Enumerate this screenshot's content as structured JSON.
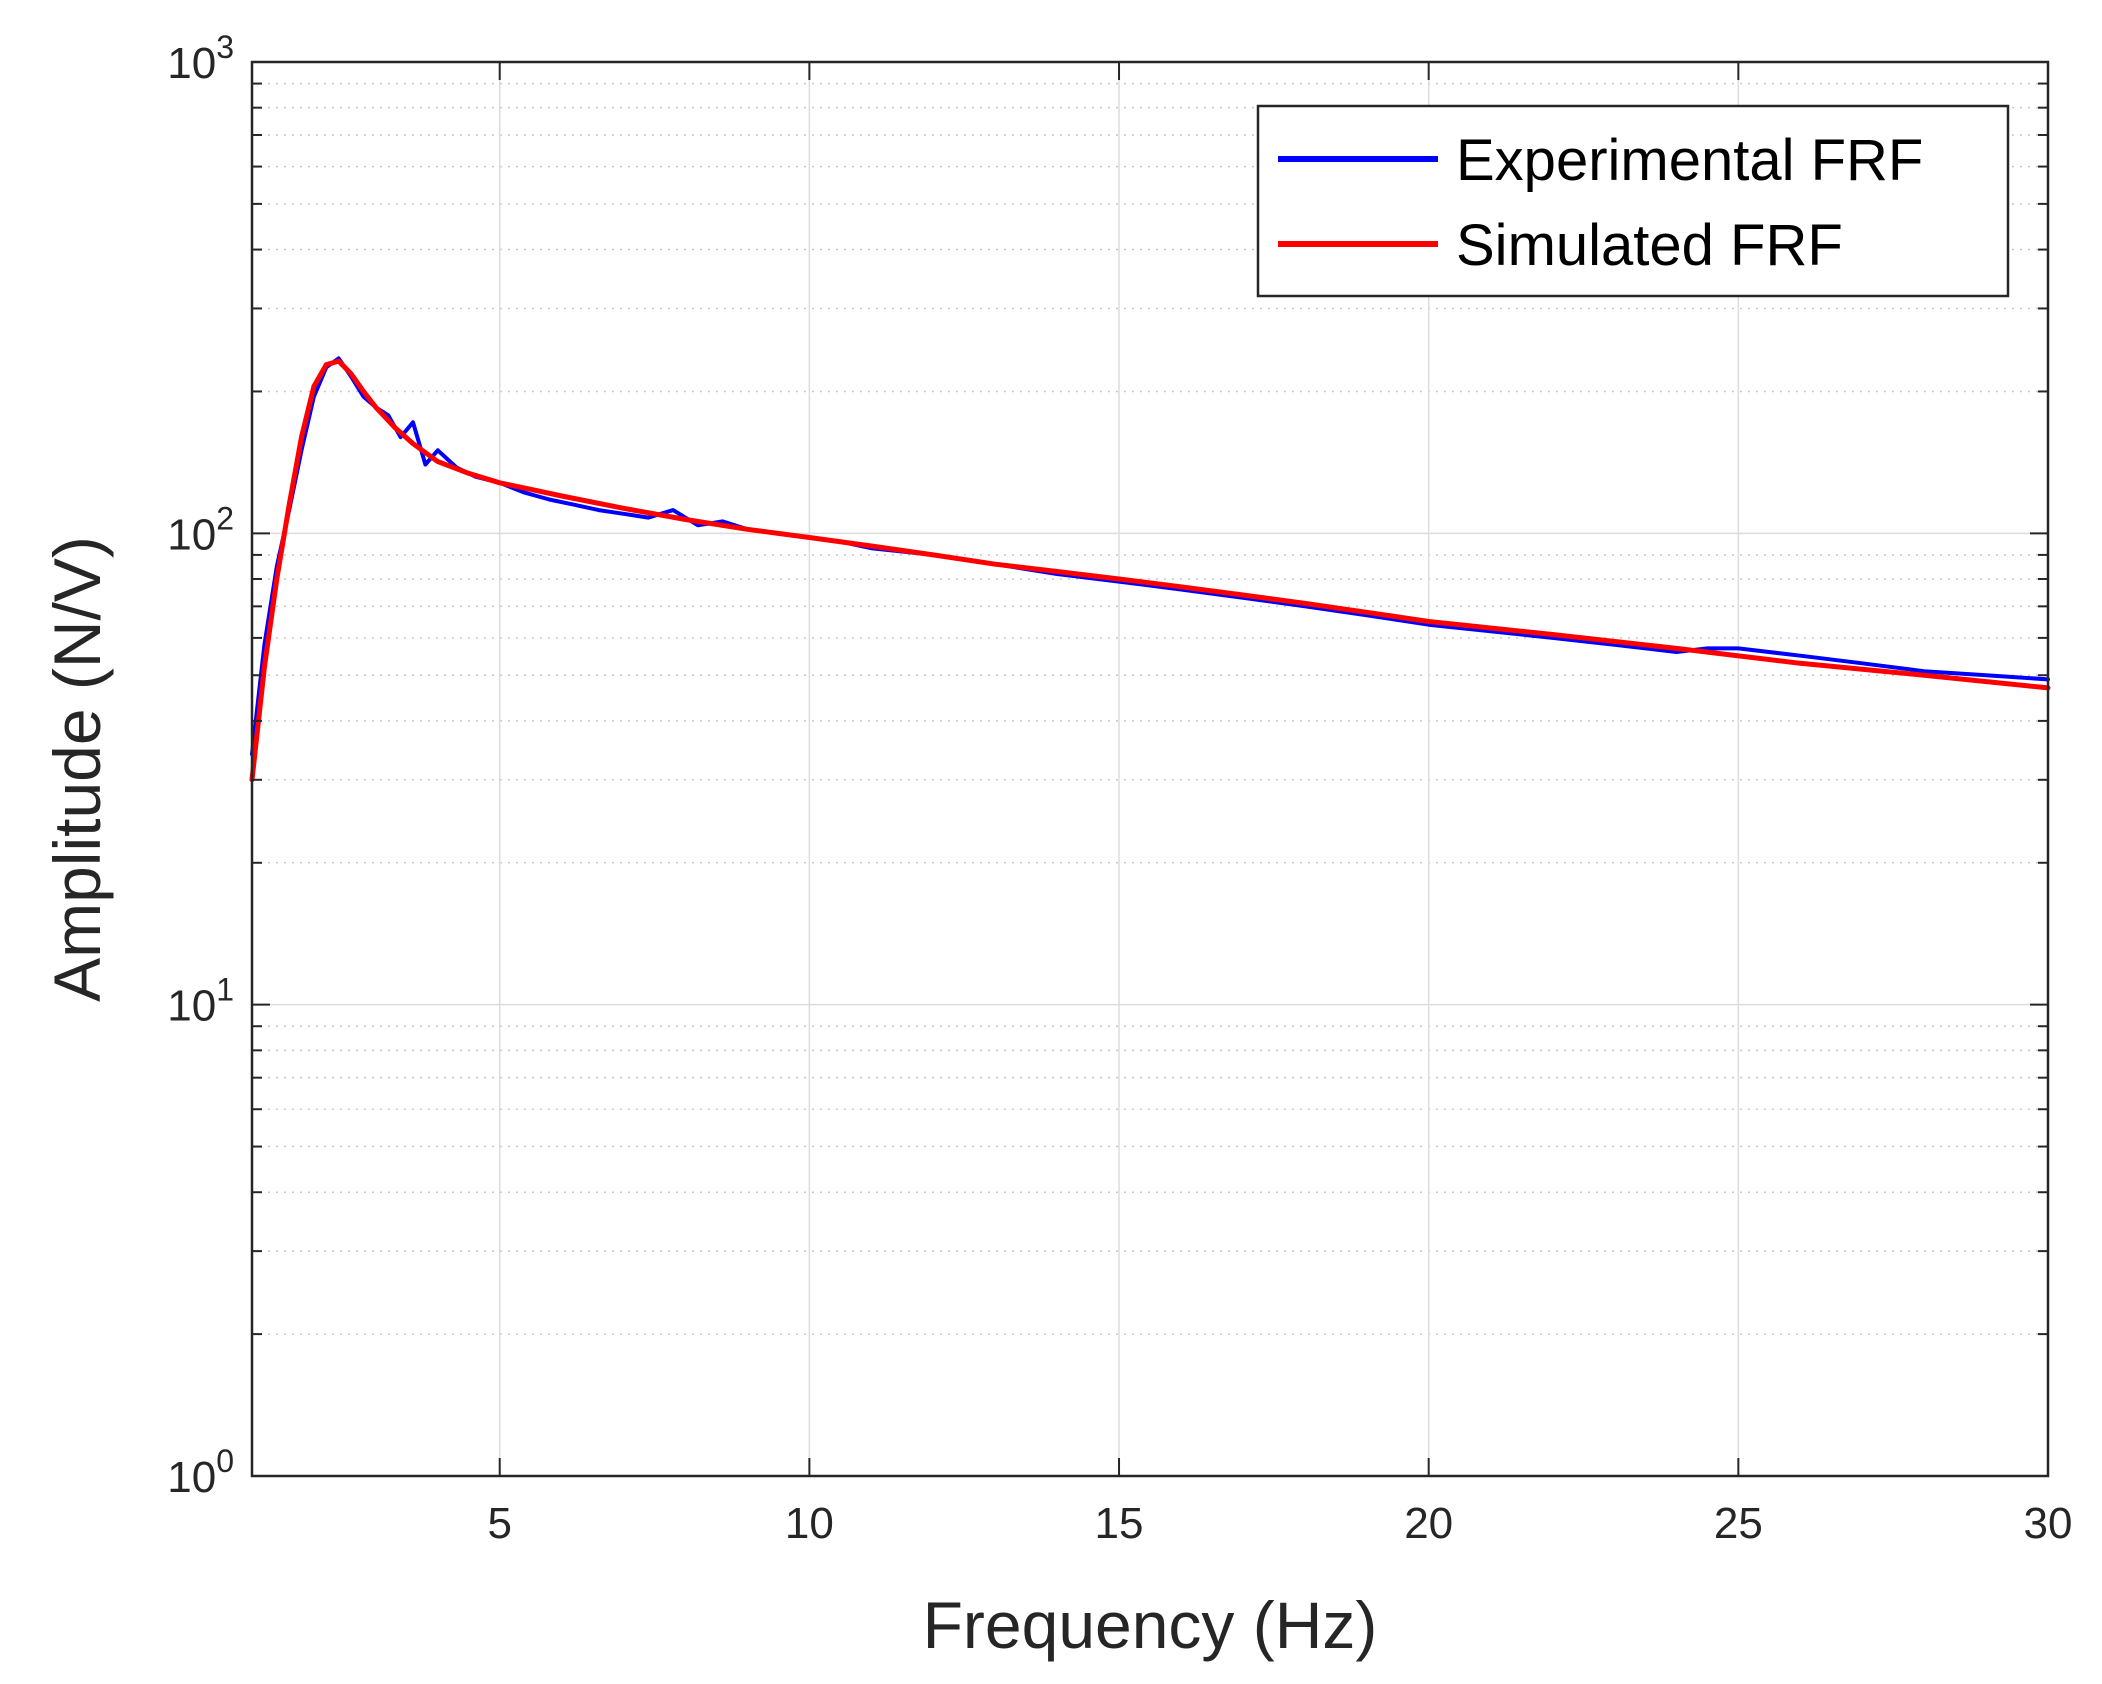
{
  "chart_data": {
    "type": "line",
    "title": "",
    "xlabel": "Frequency (Hz)",
    "ylabel": "Amplitude (N/V)",
    "xscale": "linear",
    "yscale": "log",
    "xlim": [
      1,
      30
    ],
    "ylim": [
      1,
      1000
    ],
    "grid": true,
    "legend_location": "top-right",
    "x_ticks": [
      5,
      10,
      15,
      20,
      25,
      30
    ],
    "x_tick_labels": [
      "5",
      "10",
      "15",
      "20",
      "25",
      "30"
    ],
    "y_ticks": [
      1,
      10,
      100,
      1000
    ],
    "y_tick_labels": [
      {
        "base": "10",
        "exp": "0"
      },
      {
        "base": "10",
        "exp": "1"
      },
      {
        "base": "10",
        "exp": "2"
      },
      {
        "base": "10",
        "exp": "3"
      }
    ],
    "series": [
      {
        "name": "Experimental FRF",
        "color": "#0000ff",
        "x": [
          1.0,
          1.2,
          1.4,
          1.6,
          1.8,
          2.0,
          2.2,
          2.4,
          2.6,
          2.8,
          3.0,
          3.2,
          3.4,
          3.6,
          3.8,
          4.0,
          4.3,
          4.6,
          5.0,
          5.4,
          5.8,
          6.2,
          6.6,
          7.0,
          7.4,
          7.8,
          8.2,
          8.6,
          9.0,
          9.5,
          10.0,
          10.5,
          11.0,
          12.0,
          13.0,
          14.0,
          15.0,
          16.0,
          17.0,
          18.0,
          19.0,
          20.0,
          21.0,
          22.0,
          23.0,
          24.0,
          24.5,
          25.0,
          26.0,
          27.0,
          28.0,
          29.0,
          30.0
        ],
        "values": [
          34,
          58,
          85,
          112,
          150,
          195,
          225,
          235,
          215,
          195,
          185,
          178,
          160,
          172,
          140,
          150,
          138,
          132,
          128,
          122,
          118,
          115,
          112,
          110,
          108,
          112,
          104,
          106,
          102,
          100,
          98,
          96,
          93,
          90,
          86,
          82,
          79,
          76,
          73,
          70,
          67,
          64,
          62,
          60,
          58,
          56,
          57,
          57,
          55,
          53,
          51,
          50,
          49
        ]
      },
      {
        "name": "Simulated FRF",
        "color": "#ff0000",
        "x": [
          1.0,
          1.2,
          1.4,
          1.6,
          1.8,
          2.0,
          2.2,
          2.4,
          2.6,
          2.8,
          3.0,
          3.3,
          3.6,
          4.0,
          4.5,
          5.0,
          5.5,
          6.0,
          7.0,
          8.0,
          9.0,
          10.0,
          11.0,
          12.0,
          13.0,
          14.0,
          15.0,
          16.0,
          17.0,
          18.0,
          19.0,
          20.0,
          22.0,
          24.0,
          26.0,
          28.0,
          30.0
        ],
        "values": [
          30,
          52,
          80,
          115,
          160,
          205,
          228,
          232,
          218,
          200,
          185,
          168,
          155,
          142,
          134,
          128,
          124,
          120,
          113,
          107,
          102,
          98,
          94,
          90,
          86,
          83,
          80,
          77,
          74,
          71,
          68,
          65,
          61,
          57,
          53,
          50,
          47
        ]
      }
    ]
  }
}
